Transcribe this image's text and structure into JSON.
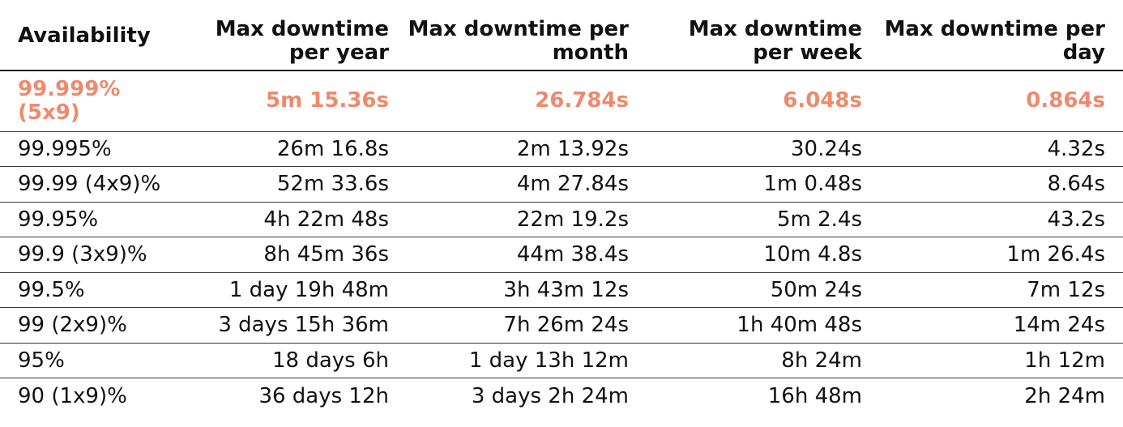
{
  "table": {
    "headers": [
      "Availability",
      "Max downtime per year",
      "Max downtime per month",
      "Max downtime per week",
      "Max downtime per day"
    ],
    "highlight_color": "#ee8a6c",
    "rows": [
      [
        "99.999% (5x9)",
        "5m 15.36s",
        "26.784s",
        "6.048s",
        "0.864s"
      ],
      [
        "99.995%",
        "26m 16.8s",
        "2m 13.92s",
        "30.24s",
        "4.32s"
      ],
      [
        "99.99 (4x9)%",
        "52m 33.6s",
        "4m 27.84s",
        "1m 0.48s",
        "8.64s"
      ],
      [
        "99.95%",
        "4h 22m 48s",
        "22m 19.2s",
        "5m 2.4s",
        "43.2s"
      ],
      [
        "99.9 (3x9)%",
        "8h 45m 36s",
        "44m 38.4s",
        "10m 4.8s",
        "1m 26.4s"
      ],
      [
        "99.5%",
        "1 day 19h 48m",
        "3h 43m 12s",
        "50m 24s",
        "7m 12s"
      ],
      [
        "99 (2x9)%",
        "3 days 15h 36m",
        "7h 26m 24s",
        "1h 40m 48s",
        "14m 24s"
      ],
      [
        "95%",
        "18 days 6h",
        "1 day 13h 12m",
        "8h 24m",
        "1h 12m"
      ],
      [
        "90 (1x9)%",
        "36 days 12h",
        "3 days 2h 24m",
        "16h 48m",
        "2h 24m"
      ]
    ]
  }
}
